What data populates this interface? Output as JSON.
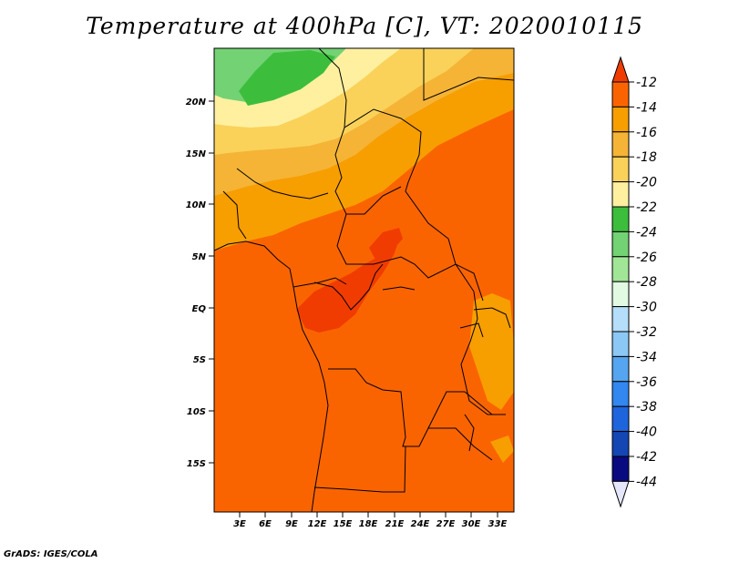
{
  "title": "Temperature at 400hPa [C], VT: 2020010115",
  "footer": "GrADS: IGES/COLA",
  "map": {
    "lon_labels": [
      "3E",
      "6E",
      "9E",
      "12E",
      "15E",
      "18E",
      "21E",
      "24E",
      "27E",
      "30E",
      "33E"
    ],
    "lat_labels": [
      "20N",
      "15N",
      "10N",
      "5N",
      "EQ",
      "5S",
      "10S",
      "15S"
    ]
  },
  "colorbar": {
    "labels": [
      "-12",
      "-14",
      "-16",
      "-18",
      "-20",
      "-22",
      "-24",
      "-26",
      "-28",
      "-30",
      "-32",
      "-34",
      "-36",
      "-38",
      "-40",
      "-42",
      "-44"
    ],
    "colors": [
      "#f03c00",
      "#fa6400",
      "#f79e00",
      "#f5b436",
      "#fad25a",
      "#fff0a0",
      "#3cbe3c",
      "#73d273",
      "#a0e696",
      "#e1fae1",
      "#b4defa",
      "#8cc8f5",
      "#55a5f0",
      "#3287f0",
      "#1e64dc",
      "#1446b4",
      "#0a0a80",
      "#e6e6fa"
    ]
  },
  "colors": {
    "dominant": "#fa6400",
    "warm_core": "#f03c00"
  }
}
